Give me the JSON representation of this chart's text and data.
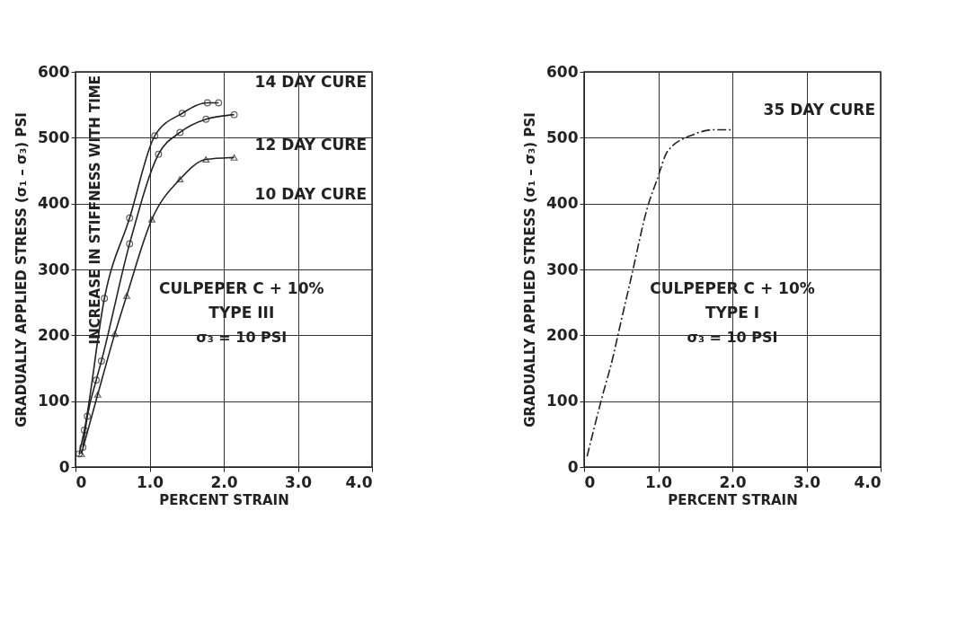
{
  "chart_data": [
    {
      "type": "line",
      "xlabel": "PERCENT STRAIN",
      "ylabel": "GRADUALLY APPLIED STRESS (σ₁ – σ₃) PSI",
      "xlim": [
        0,
        4
      ],
      "ylim": [
        0,
        600
      ],
      "xticks": [
        0,
        {
          "value": 1,
          "label": "1.0"
        },
        {
          "value": 2,
          "label": "2.0"
        },
        {
          "value": 3,
          "label": "3.0"
        },
        {
          "value": 4,
          "label": "4.0"
        }
      ],
      "yticks": [
        0,
        100,
        200,
        300,
        400,
        500,
        600
      ],
      "grid": true,
      "line_style": "solid",
      "series": [
        {
          "name": "14 DAY CURE",
          "color": "#222222",
          "marker": "circle",
          "x": [
            0.05,
            0.12,
            0.39,
            0.73,
            1.07,
            1.44,
            1.78,
            1.93
          ],
          "values": [
            20,
            56,
            256,
            378,
            503,
            537,
            553,
            553
          ]
        },
        {
          "name": "12 DAY CURE",
          "color": "#222222",
          "marker": "circle",
          "x": [
            0.1,
            0.16,
            0.28,
            0.35,
            0.73,
            1.12,
            1.41,
            1.76,
            2.14
          ],
          "values": [
            30,
            77,
            132,
            161,
            339,
            475,
            508,
            528,
            535
          ]
        },
        {
          "name": "10 DAY CURE",
          "color": "#222222",
          "marker": "triangle",
          "x": [
            0.08,
            0.3,
            0.53,
            0.69,
            1.03,
            1.41,
            1.76,
            2.14
          ],
          "values": [
            20,
            110,
            202,
            260,
            376,
            437,
            467,
            470
          ]
        }
      ],
      "annotations": [
        "INCREASE IN STIFFNESS WITH TIME",
        "CULPEPER C + 10%",
        "TYPE III",
        "σ₃ = 10 PSI"
      ]
    },
    {
      "type": "line",
      "xlabel": "PERCENT STRAIN",
      "ylabel": "GRADUALLY APPLIED STRESS (σ₁ – σ₃) PSI",
      "xlim": [
        0,
        4
      ],
      "ylim": [
        0,
        600
      ],
      "xticks": [
        0,
        {
          "value": 1,
          "label": "1.0"
        },
        {
          "value": 2,
          "label": "2.0"
        },
        {
          "value": 3,
          "label": "3.0"
        },
        {
          "value": 4,
          "label": "4.0"
        }
      ],
      "yticks": [
        0,
        100,
        200,
        300,
        400,
        500,
        600
      ],
      "grid": true,
      "line_style": "dashed",
      "series": [
        {
          "name": "35 DAY CURE",
          "color": "#222222",
          "marker": "none",
          "x": [
            0.04,
            0.24,
            0.39,
            0.47,
            0.62,
            0.87,
            0.98,
            1.13,
            1.48,
            1.73,
            1.98
          ],
          "values": [
            16,
            105,
            167,
            207,
            280,
            400,
            435,
            480,
            505,
            512,
            512
          ]
        }
      ],
      "annotations": [
        "CULPEPER C + 10%",
        "TYPE I",
        "σ₃ = 10 PSI"
      ]
    }
  ]
}
